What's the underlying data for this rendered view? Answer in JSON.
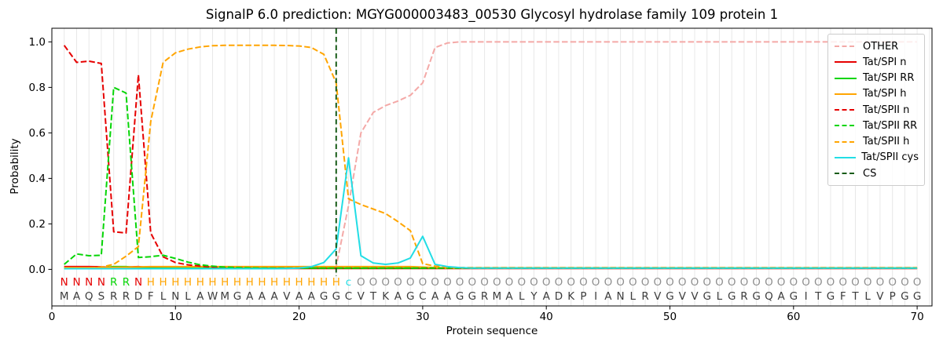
{
  "chart_data": {
    "type": "line",
    "title": "SignalP 6.0 prediction: MGYG000003483_00530 Glycosyl hydrolase family 109 protein 1",
    "xlabel": "Protein sequence",
    "ylabel": "Probability",
    "x_ticks": [
      "0",
      "10",
      "20",
      "30",
      "40",
      "50",
      "60",
      "70"
    ],
    "y_ticks": [
      "0.0",
      "0.2",
      "0.4",
      "0.6",
      "0.8",
      "1.0"
    ],
    "xlim": [
      0,
      71.2
    ],
    "ylim": [
      -0.16,
      1.06
    ],
    "grid": "vertical line at every residue position",
    "legend_position": "upper right",
    "x": [
      1,
      2,
      3,
      4,
      5,
      6,
      7,
      8,
      9,
      10,
      11,
      12,
      13,
      14,
      15,
      16,
      17,
      18,
      19,
      20,
      21,
      22,
      23,
      24,
      25,
      26,
      27,
      28,
      29,
      30,
      31,
      32,
      33,
      34,
      35,
      36,
      37,
      38,
      39,
      40,
      41,
      42,
      43,
      44,
      45,
      46,
      47,
      48,
      49,
      50,
      51,
      52,
      53,
      54,
      55,
      56,
      57,
      58,
      59,
      60,
      61,
      62,
      63,
      64,
      65,
      66,
      67,
      68,
      69,
      70
    ],
    "series": [
      {
        "name": "OTHER",
        "color": "#f4a9a7",
        "dash": "dashed",
        "values": [
          0.005,
          0.005,
          0.005,
          0.005,
          0.005,
          0.005,
          0.005,
          0.005,
          0.005,
          0.005,
          0.005,
          0.005,
          0.005,
          0.005,
          0.005,
          0.005,
          0.005,
          0.005,
          0.005,
          0.005,
          0.006,
          0.008,
          0.012,
          0.28,
          0.6,
          0.69,
          0.72,
          0.74,
          0.765,
          0.82,
          0.975,
          0.995,
          1.0,
          1.0,
          1.0,
          1.0,
          1.0,
          1.0,
          1.0,
          1.0,
          1.0,
          1.0,
          1.0,
          1.0,
          1.0,
          1.0,
          1.0,
          1.0,
          1.0,
          1.0,
          1.0,
          1.0,
          1.0,
          1.0,
          1.0,
          1.0,
          1.0,
          1.0,
          1.0,
          1.0,
          1.0,
          1.0,
          1.0,
          1.0,
          1.0,
          1.0,
          1.0,
          1.0,
          1.0,
          1.0
        ]
      },
      {
        "name": "Tat/SPI n",
        "color": "#e60000",
        "dash": "solid",
        "values": [
          0.012,
          0.012,
          0.012,
          0.011,
          0.008,
          0.01,
          0.012,
          0.007,
          0.005,
          0.004,
          0.004,
          0.004,
          0.004,
          0.004,
          0.004,
          0.004,
          0.004,
          0.004,
          0.004,
          0.004,
          0.004,
          0.004,
          0.004,
          0.004,
          0.004,
          0.004,
          0.004,
          0.004,
          0.004,
          0.004,
          0.004,
          0.004,
          0.004,
          0.004,
          0.004,
          0.004,
          0.004,
          0.004,
          0.004,
          0.004,
          0.004,
          0.004,
          0.004,
          0.004,
          0.004,
          0.004,
          0.004,
          0.004,
          0.004,
          0.004,
          0.004,
          0.004,
          0.004,
          0.004,
          0.004,
          0.004,
          0.004,
          0.004,
          0.004,
          0.004,
          0.004,
          0.004,
          0.004,
          0.004,
          0.004,
          0.004,
          0.004,
          0.004,
          0.004,
          0.004
        ]
      },
      {
        "name": "Tat/SPI RR",
        "color": "#06d506",
        "dash": "solid",
        "values": [
          0.006,
          0.006,
          0.006,
          0.007,
          0.012,
          0.012,
          0.008,
          0.006,
          0.006,
          0.005,
          0.005,
          0.005,
          0.005,
          0.005,
          0.005,
          0.005,
          0.005,
          0.005,
          0.005,
          0.005,
          0.005,
          0.005,
          0.005,
          0.005,
          0.005,
          0.005,
          0.005,
          0.005,
          0.005,
          0.005,
          0.005,
          0.005,
          0.005,
          0.005,
          0.005,
          0.005,
          0.005,
          0.005,
          0.005,
          0.005,
          0.005,
          0.005,
          0.005,
          0.005,
          0.005,
          0.005,
          0.005,
          0.005,
          0.005,
          0.005,
          0.005,
          0.005,
          0.005,
          0.005,
          0.005,
          0.005,
          0.005,
          0.005,
          0.005,
          0.005,
          0.005,
          0.005,
          0.005,
          0.005,
          0.005,
          0.005,
          0.005,
          0.005,
          0.005,
          0.005
        ]
      },
      {
        "name": "Tat/SPI h",
        "color": "#ffa502",
        "dash": "solid",
        "values": [
          0.008,
          0.008,
          0.008,
          0.008,
          0.009,
          0.01,
          0.011,
          0.012,
          0.012,
          0.012,
          0.012,
          0.012,
          0.012,
          0.012,
          0.012,
          0.012,
          0.012,
          0.012,
          0.012,
          0.012,
          0.012,
          0.012,
          0.012,
          0.012,
          0.012,
          0.012,
          0.012,
          0.012,
          0.012,
          0.01,
          0.008,
          0.006,
          0.006,
          0.006,
          0.006,
          0.006,
          0.006,
          0.006,
          0.006,
          0.006,
          0.006,
          0.006,
          0.006,
          0.006,
          0.006,
          0.006,
          0.006,
          0.006,
          0.006,
          0.006,
          0.006,
          0.006,
          0.006,
          0.006,
          0.006,
          0.006,
          0.006,
          0.006,
          0.006,
          0.006,
          0.006,
          0.006,
          0.006,
          0.006,
          0.006,
          0.006,
          0.006,
          0.006,
          0.006,
          0.006
        ]
      },
      {
        "name": "Tat/SPII n",
        "color": "#e60000",
        "dash": "dashed",
        "values": [
          0.985,
          0.91,
          0.915,
          0.905,
          0.165,
          0.16,
          0.855,
          0.16,
          0.055,
          0.03,
          0.02,
          0.014,
          0.01,
          0.008,
          0.007,
          0.006,
          0.005,
          0.005,
          0.005,
          0.005,
          0.005,
          0.005,
          0.005,
          0.005,
          0.005,
          0.005,
          0.005,
          0.005,
          0.005,
          0.005,
          0.005,
          0.005,
          0.005,
          0.005,
          0.005,
          0.005,
          0.005,
          0.005,
          0.005,
          0.005,
          0.005,
          0.005,
          0.005,
          0.005,
          0.005,
          0.005,
          0.005,
          0.005,
          0.005,
          0.005,
          0.005,
          0.005,
          0.005,
          0.005,
          0.005,
          0.005,
          0.005,
          0.005,
          0.005,
          0.005,
          0.005,
          0.005,
          0.005,
          0.005,
          0.005,
          0.005,
          0.005,
          0.005,
          0.005,
          0.005
        ]
      },
      {
        "name": "Tat/SPII RR",
        "color": "#06d506",
        "dash": "dashed",
        "values": [
          0.022,
          0.068,
          0.06,
          0.062,
          0.8,
          0.775,
          0.052,
          0.056,
          0.062,
          0.048,
          0.032,
          0.02,
          0.014,
          0.01,
          0.008,
          0.007,
          0.006,
          0.006,
          0.006,
          0.006,
          0.006,
          0.006,
          0.006,
          0.006,
          0.006,
          0.006,
          0.006,
          0.006,
          0.006,
          0.006,
          0.006,
          0.006,
          0.006,
          0.006,
          0.006,
          0.006,
          0.006,
          0.006,
          0.006,
          0.006,
          0.006,
          0.006,
          0.006,
          0.006,
          0.006,
          0.006,
          0.006,
          0.006,
          0.006,
          0.006,
          0.006,
          0.006,
          0.006,
          0.006,
          0.006,
          0.006,
          0.006,
          0.006,
          0.006,
          0.006,
          0.006,
          0.006,
          0.006,
          0.006,
          0.006,
          0.006,
          0.006,
          0.006,
          0.006,
          0.006
        ]
      },
      {
        "name": "Tat/SPII h",
        "color": "#ffa502",
        "dash": "dashed",
        "values": [
          0.005,
          0.006,
          0.007,
          0.01,
          0.022,
          0.058,
          0.1,
          0.65,
          0.91,
          0.952,
          0.968,
          0.978,
          0.983,
          0.985,
          0.985,
          0.985,
          0.985,
          0.985,
          0.984,
          0.982,
          0.975,
          0.945,
          0.82,
          0.31,
          0.285,
          0.265,
          0.245,
          0.21,
          0.17,
          0.025,
          0.014,
          0.01,
          0.008,
          0.008,
          0.008,
          0.008,
          0.008,
          0.008,
          0.008,
          0.008,
          0.008,
          0.008,
          0.008,
          0.008,
          0.008,
          0.008,
          0.008,
          0.008,
          0.008,
          0.008,
          0.008,
          0.008,
          0.008,
          0.008,
          0.008,
          0.008,
          0.008,
          0.008,
          0.008,
          0.008,
          0.008,
          0.008,
          0.008,
          0.008,
          0.008,
          0.008,
          0.008,
          0.008,
          0.008,
          0.008
        ]
      },
      {
        "name": "Tat/SPII cys",
        "color": "#22dde5",
        "dash": "solid",
        "values": [
          0.003,
          0.003,
          0.003,
          0.003,
          0.003,
          0.003,
          0.003,
          0.003,
          0.003,
          0.003,
          0.003,
          0.003,
          0.003,
          0.003,
          0.003,
          0.003,
          0.003,
          0.003,
          0.004,
          0.006,
          0.012,
          0.03,
          0.09,
          0.49,
          0.06,
          0.028,
          0.022,
          0.028,
          0.05,
          0.145,
          0.022,
          0.012,
          0.008,
          0.006,
          0.006,
          0.006,
          0.006,
          0.006,
          0.006,
          0.006,
          0.006,
          0.006,
          0.006,
          0.006,
          0.006,
          0.006,
          0.006,
          0.006,
          0.006,
          0.006,
          0.006,
          0.006,
          0.006,
          0.006,
          0.006,
          0.006,
          0.006,
          0.006,
          0.006,
          0.006,
          0.006,
          0.006,
          0.006,
          0.006,
          0.006,
          0.006,
          0.006,
          0.006,
          0.006,
          0.006
        ]
      },
      {
        "name": "CS",
        "color": "#185c18",
        "dash": "dashed",
        "vline": 23
      }
    ]
  },
  "sequence_track": {
    "annotation": "NNNNRRNHHHHHHHHHHHHHHHHcOOOOOOOOOOOOOOOOOOOOOOOOOOOOOOOOOOOOOOOOOOOOOO",
    "sequence": "MAQSRRDFLNLAWMGAAAVAAGGCVTKAGCAAGGRMALYADKPIANLRVGVVGLGRGQAGITGFTLVPGG",
    "annotation_colors": {
      "N": "#e60000",
      "R": "#06d506",
      "H": "#ffa502",
      "c": "#22dde5",
      "O": "#8f8f8f"
    },
    "sequence_color": "#3c3c3c"
  }
}
